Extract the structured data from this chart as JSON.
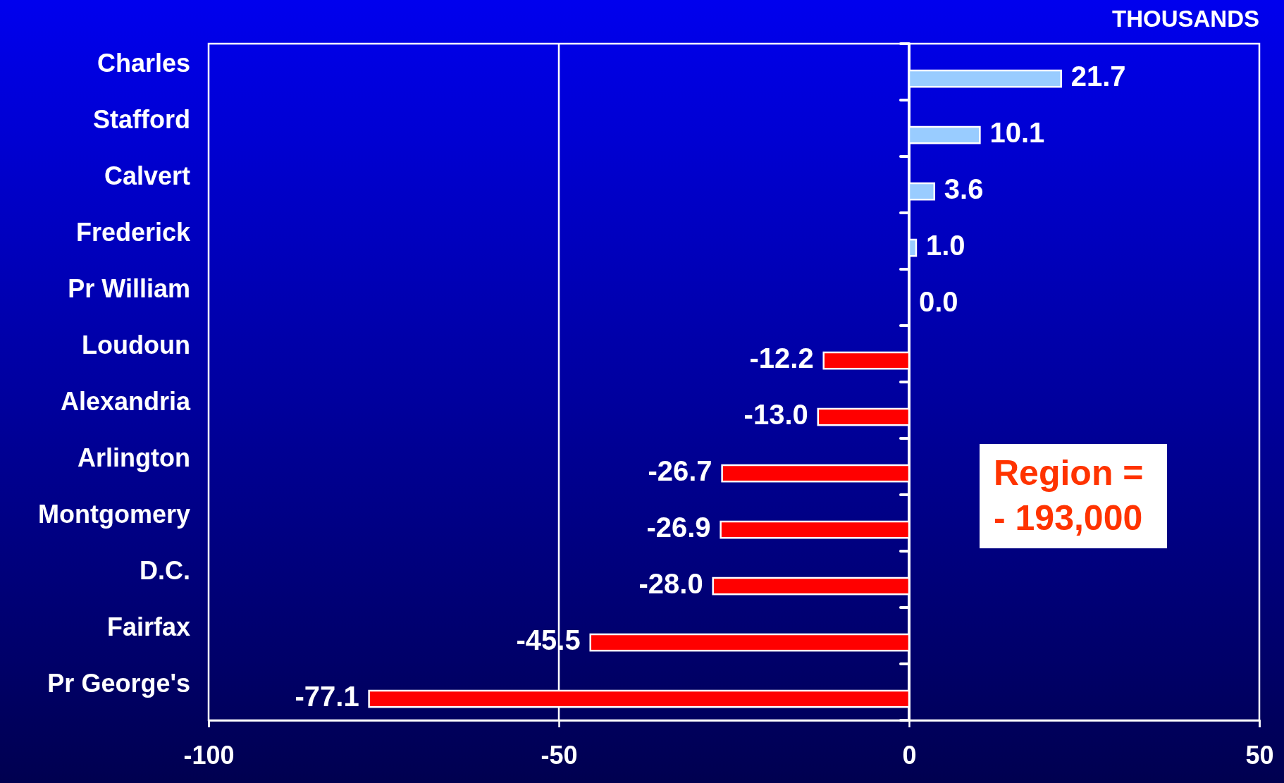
{
  "chart_data": {
    "type": "bar",
    "orientation": "horizontal",
    "categories": [
      "Charles",
      "Stafford",
      "Calvert",
      "Frederick",
      "Pr William",
      "Loudoun",
      "Alexandria",
      "Arlington",
      "Montgomery",
      "D.C.",
      "Fairfax",
      "Pr George's"
    ],
    "values": [
      21.7,
      10.1,
      3.6,
      1.0,
      0.0,
      -12.2,
      -13.0,
      -26.7,
      -26.9,
      -28.0,
      -45.5,
      -77.1
    ],
    "value_labels": [
      "21.7",
      "10.1",
      "3.6",
      "1.0",
      "0.0",
      "-12.2",
      "-13.0",
      "-26.7",
      "-26.9",
      "-28.0",
      "-45.5",
      "-77.1"
    ],
    "colors": [
      "#99ccff",
      "#99ccff",
      "#99ccff",
      "#99ccff",
      "#99ccff",
      "#ff0000",
      "#ff0000",
      "#ff0000",
      "#ff0000",
      "#ff0000",
      "#ff0000",
      "#ff0000"
    ],
    "xlim": [
      -100,
      50
    ],
    "xticks": [
      -100,
      -50,
      0,
      50
    ],
    "ref_lines": [
      {
        "axis": "x",
        "value": -50,
        "color": "#ffffff"
      }
    ],
    "annotations": [
      "THOUSANDS",
      "Region =\n- 193,000"
    ]
  }
}
